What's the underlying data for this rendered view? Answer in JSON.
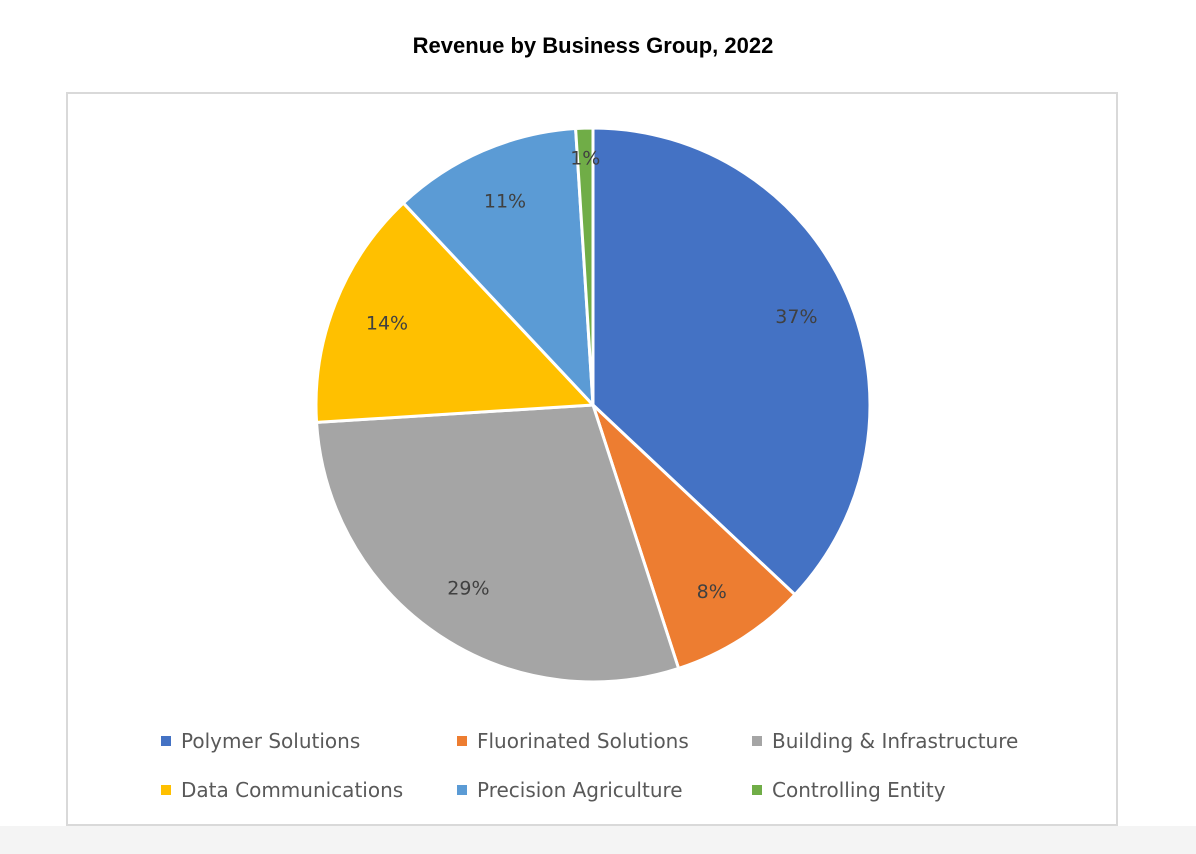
{
  "chart_data": {
    "type": "pie",
    "title": "Revenue by Business Group, 2022",
    "legend_position": "bottom",
    "slices": [
      {
        "name": "Polymer Solutions",
        "value": 37,
        "label": "37%",
        "color": "#4472c4"
      },
      {
        "name": "Fluorinated Solutions",
        "value": 8,
        "label": "8%",
        "color": "#ed7d31"
      },
      {
        "name": "Building & Infrastructure",
        "value": 29,
        "label": "29%",
        "color": "#a5a5a5"
      },
      {
        "name": "Data Communications",
        "value": 14,
        "label": "14%",
        "color": "#ffc000"
      },
      {
        "name": "Precision Agriculture",
        "value": 11,
        "label": "11%",
        "color": "#5b9bd5"
      },
      {
        "name": "Controlling Entity",
        "value": 1,
        "label": "1%",
        "color": "#70ad47"
      }
    ]
  }
}
